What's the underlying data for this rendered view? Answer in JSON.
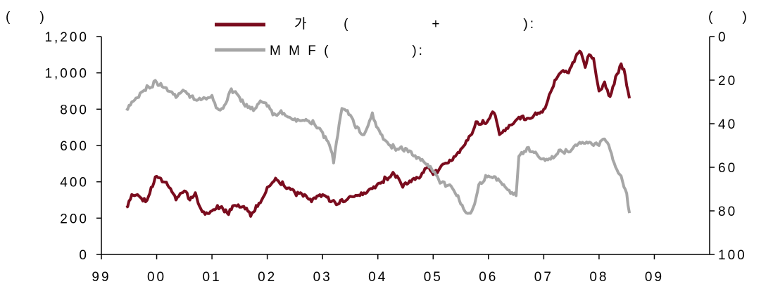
{
  "chart_data": {
    "type": "line",
    "left_unit": "(        )",
    "right_unit": "(        )",
    "x_ticks": [
      "99",
      "00",
      "01",
      "02",
      "03",
      "04",
      "05",
      "06",
      "07",
      "08",
      "09"
    ],
    "xlim": [
      1999.0,
      2010.0
    ],
    "y_left": {
      "ylim": [
        0,
        1200
      ],
      "ticks": [
        0,
        200,
        400,
        600,
        800,
        1000,
        1200
      ],
      "tick_labels": [
        "0",
        "200",
        "400",
        "600",
        "800",
        "1,000",
        "1,200"
      ]
    },
    "y_right": {
      "ylim": [
        0,
        100
      ],
      "inverted": true,
      "ticks": [
        0,
        20,
        40,
        60,
        80,
        100
      ],
      "tick_labels": [
        "0",
        "20",
        "40",
        "60",
        "80",
        "100"
      ]
    },
    "grid": false,
    "legend_position": "top-center",
    "series": [
      {
        "name": "가      (              +              ):",
        "axis": "left",
        "color": "#7a0c1e",
        "x": [
          1999.45,
          1999.55,
          1999.65,
          1999.8,
          1999.9,
          2000.0,
          2000.1,
          2000.2,
          2000.35,
          2000.5,
          2000.6,
          2000.7,
          2000.8,
          2000.9,
          2001.0,
          2001.1,
          2001.2,
          2001.3,
          2001.4,
          2001.5,
          2001.6,
          2001.7,
          2001.8,
          2001.9,
          2002.0,
          2002.15,
          2002.3,
          2002.5,
          2002.65,
          2002.8,
          2003.0,
          2003.15,
          2003.3,
          2003.5,
          2003.7,
          2003.85,
          2004.0,
          2004.15,
          2004.3,
          2004.45,
          2004.6,
          2004.75,
          2004.9,
          2005.0,
          2005.15,
          2005.3,
          2005.5,
          2005.65,
          2005.8,
          2005.95,
          2006.1,
          2006.2,
          2006.3,
          2006.45,
          2006.5,
          2006.6,
          2006.7,
          2006.85,
          2007.0,
          2007.1,
          2007.2,
          2007.3,
          2007.45,
          2007.55,
          2007.65,
          2007.75,
          2007.82,
          2007.9,
          2008.0,
          2008.1,
          2008.2,
          2008.3,
          2008.4,
          2008.45,
          2008.5,
          2008.55
        ],
        "y": [
          260,
          330,
          330,
          290,
          370,
          430,
          400,
          380,
          300,
          350,
          300,
          340,
          250,
          230,
          240,
          270,
          250,
          220,
          270,
          260,
          250,
          210,
          270,
          300,
          370,
          420,
          380,
          340,
          320,
          290,
          330,
          290,
          280,
          320,
          340,
          360,
          390,
          420,
          440,
          370,
          400,
          420,
          480,
          440,
          490,
          520,
          580,
          650,
          730,
          720,
          780,
          660,
          680,
          720,
          740,
          760,
          750,
          780,
          800,
          880,
          960,
          1000,
          1000,
          1060,
          1120,
          1030,
          1100,
          1080,
          900,
          950,
          870,
          980,
          1050,
          1020,
          930,
          860
        ]
      },
      {
        "name": "M M F (              ):",
        "axis": "right",
        "color": "#a6a6a6",
        "x": [
          1999.45,
          1999.55,
          1999.7,
          1999.85,
          2000.0,
          2000.1,
          2000.2,
          2000.35,
          2000.5,
          2000.6,
          2000.75,
          2000.85,
          2001.0,
          2001.1,
          2001.2,
          2001.35,
          2001.5,
          2001.6,
          2001.75,
          2001.9,
          2002.0,
          2002.1,
          2002.25,
          2002.4,
          2002.55,
          2002.7,
          2002.85,
          2003.0,
          2003.15,
          2003.2,
          2003.35,
          2003.5,
          2003.6,
          2003.75,
          2003.9,
          2004.0,
          2004.15,
          2004.3,
          2004.45,
          2004.55,
          2004.7,
          2004.85,
          2005.0,
          2005.15,
          2005.3,
          2005.45,
          2005.6,
          2005.7,
          2005.85,
          2006.0,
          2006.15,
          2006.3,
          2006.4,
          2006.5,
          2006.55,
          2006.7,
          2006.85,
          2007.0,
          2007.15,
          2007.3,
          2007.45,
          2007.6,
          2007.75,
          2007.9,
          2008.0,
          2008.1,
          2008.2,
          2008.3,
          2008.4,
          2008.5,
          2008.55
        ],
        "y": [
          33,
          30,
          26,
          23,
          21,
          23,
          25,
          28,
          25,
          28,
          29,
          28,
          27,
          33,
          33,
          24,
          28,
          32,
          34,
          30,
          32,
          36,
          34,
          37,
          38,
          38,
          40,
          44,
          52,
          58,
          33,
          36,
          42,
          45,
          35,
          42,
          48,
          51,
          52,
          53,
          56,
          58,
          62,
          67,
          68,
          73,
          81,
          80,
          67,
          64,
          66,
          69,
          72,
          73,
          55,
          51,
          53,
          56,
          55,
          52,
          53,
          50,
          49,
          50,
          50,
          47,
          52,
          60,
          64,
          72,
          81
        ]
      }
    ]
  }
}
